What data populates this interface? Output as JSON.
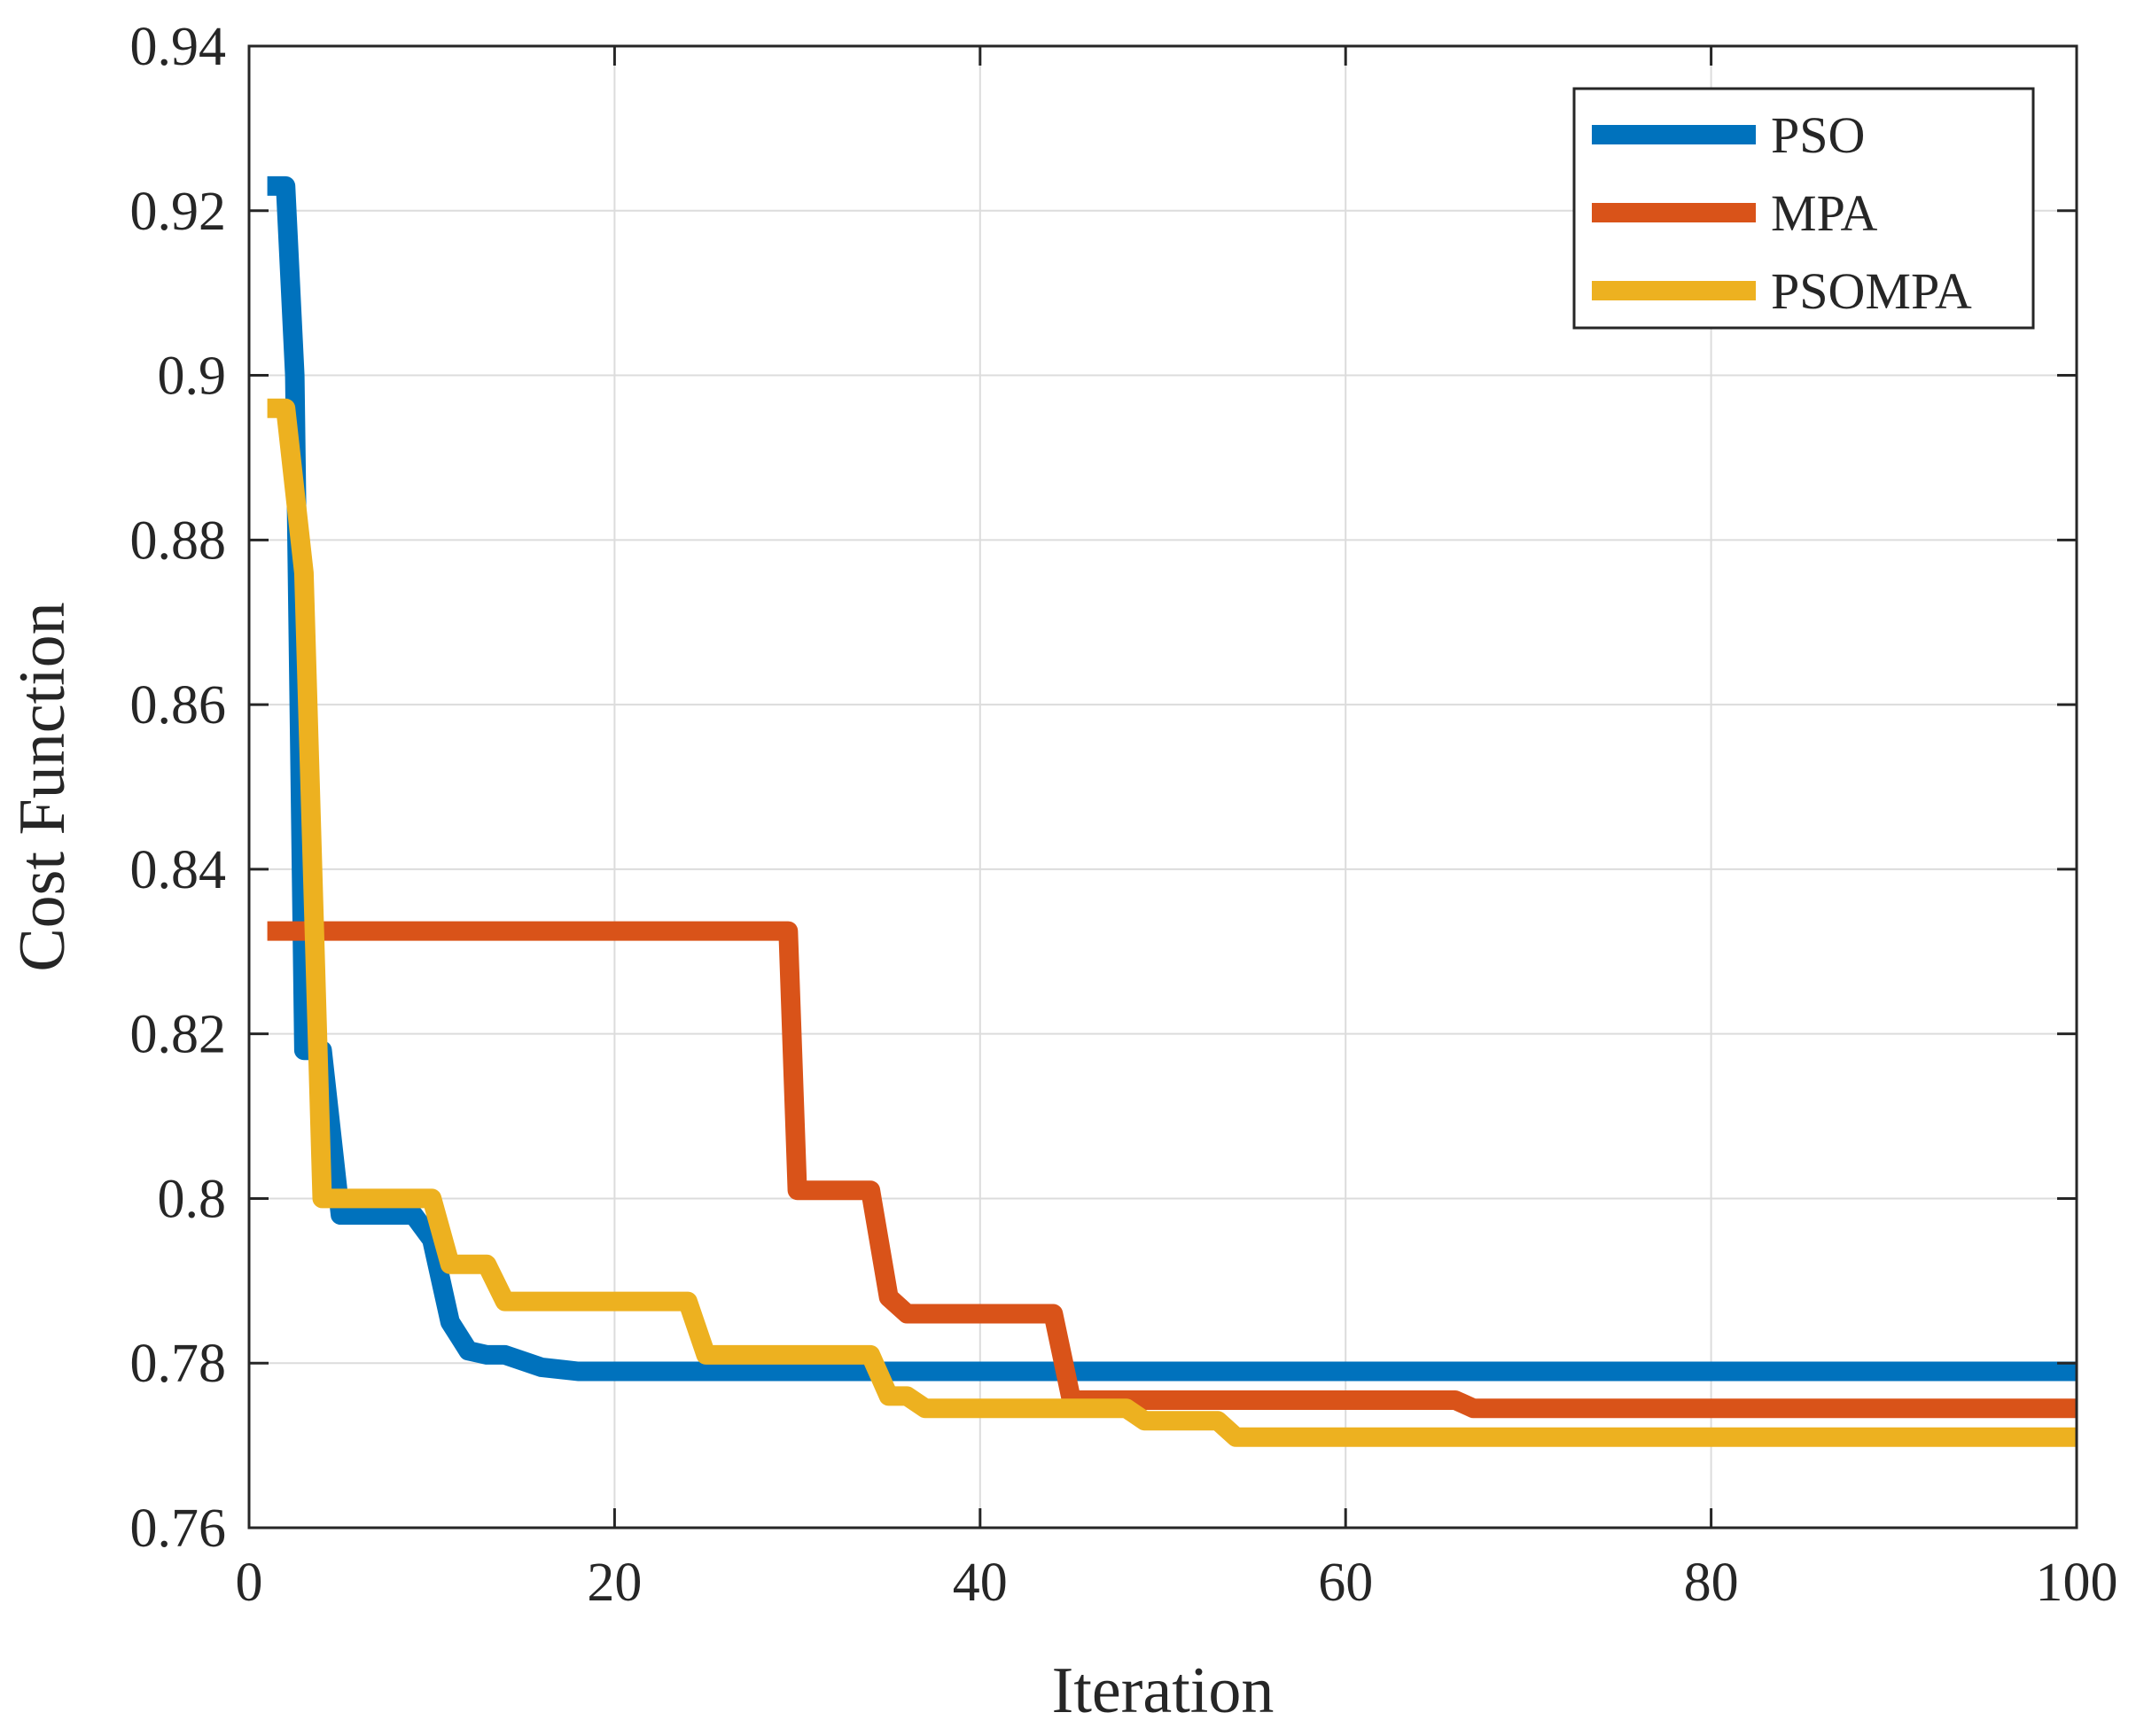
{
  "chart_data": {
    "type": "line",
    "title": "",
    "xlabel": "Iteration",
    "ylabel": "Cost Function",
    "xlim": [
      0,
      100
    ],
    "ylim": [
      0.76,
      0.94
    ],
    "xticks": [
      0,
      20,
      40,
      60,
      80,
      100
    ],
    "xtick_labels": [
      "0",
      "20",
      "40",
      "60",
      "80",
      "100"
    ],
    "yticks": [
      0.76,
      0.78,
      0.8,
      0.82,
      0.84,
      0.86,
      0.88,
      0.9,
      0.92,
      0.94
    ],
    "ytick_labels": [
      "0.76",
      "0.78",
      "0.8",
      "0.82",
      "0.84",
      "0.86",
      "0.88",
      "0.9",
      "0.92",
      "0.94"
    ],
    "grid": true,
    "legend_position": "top-right",
    "series": [
      {
        "name": "PSO",
        "color": "#0072BD",
        "x": [
          1,
          2,
          2.5,
          3,
          4,
          5,
          6,
          9,
          10,
          11,
          12,
          13,
          14,
          16,
          18,
          20,
          100
        ],
        "y": [
          0.923,
          0.923,
          0.9,
          0.818,
          0.818,
          0.798,
          0.798,
          0.798,
          0.795,
          0.785,
          0.7815,
          0.781,
          0.781,
          0.7795,
          0.779,
          0.779,
          0.779
        ]
      },
      {
        "name": "MPA",
        "color": "#D95319",
        "x": [
          1,
          29,
          29.5,
          30,
          34,
          35,
          36,
          44,
          45,
          66,
          67,
          100
        ],
        "y": [
          0.8325,
          0.8325,
          0.8325,
          0.801,
          0.801,
          0.788,
          0.786,
          0.786,
          0.7755,
          0.7755,
          0.7745,
          0.7745
        ]
      },
      {
        "name": "PSOMPA",
        "color": "#EDB120",
        "x": [
          1,
          2,
          3,
          4,
          5,
          9,
          10,
          11,
          13,
          14,
          24,
          25,
          34,
          35,
          36,
          37,
          47,
          48,
          49,
          53,
          54,
          55,
          100
        ],
        "y": [
          0.896,
          0.896,
          0.876,
          0.8,
          0.8,
          0.8,
          0.8,
          0.792,
          0.792,
          0.7875,
          0.7875,
          0.781,
          0.781,
          0.776,
          0.776,
          0.7745,
          0.7745,
          0.7745,
          0.773,
          0.773,
          0.771,
          0.771,
          0.771
        ]
      }
    ]
  }
}
